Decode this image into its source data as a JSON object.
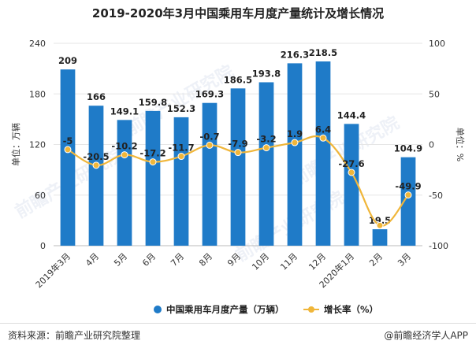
{
  "title": "2019-2020年3月中国乘用车月度产量统计及增长情况",
  "footer": {
    "source": "资料来源：前瞻产业研究院整理",
    "brand": "@前瞻经济学人APP"
  },
  "watermark": "前瞻产业研究院",
  "colors": {
    "bar": "#1f7bc8",
    "line": "#f0b63a",
    "grid": "#e6e6e6",
    "text": "#333333"
  },
  "chart_data": {
    "type": "bar",
    "categories": [
      "2019年3月",
      "4月",
      "5月",
      "6月",
      "7月",
      "8月",
      "9月",
      "10月",
      "11月",
      "12月",
      "2020年1月",
      "2月",
      "3月"
    ],
    "series": [
      {
        "name": "中国乘用车月度产量（万辆）",
        "type": "bar",
        "axis": "left",
        "values": [
          209,
          166,
          149.1,
          159.8,
          152.3,
          169.3,
          186.5,
          193.8,
          216.3,
          218.5,
          144.4,
          19.5,
          104.9
        ],
        "labels": [
          "209",
          "166",
          "149.1",
          "159.8",
          "152.3",
          "169.3",
          "186.5",
          "193.8",
          "216.3",
          "218.5",
          "144.4",
          "19.5",
          "104.9"
        ]
      },
      {
        "name": "增长率（%）",
        "type": "line",
        "axis": "right",
        "values": [
          -5,
          -20.5,
          -10.2,
          -17.2,
          -11.7,
          -0.7,
          -7.9,
          -3.2,
          1.9,
          6.4,
          -27.6,
          -80,
          -49.9
        ],
        "labels": [
          "-5",
          "-20.5",
          "-10.2",
          "-17.2",
          "-11.7",
          "-0.7",
          "-7.9",
          "-3.2",
          "1.9",
          "6.4",
          "-27.6",
          "",
          "-49.9"
        ]
      }
    ],
    "y_left": {
      "label": "单位：万辆",
      "ylim": [
        0,
        240
      ],
      "ticks": [
        "0",
        "60",
        "120",
        "180",
        "240"
      ]
    },
    "y_right": {
      "label": "单位：%",
      "ylim": [
        -100,
        100
      ],
      "ticks": [
        "-100",
        "-50",
        "0",
        "50",
        "100"
      ]
    },
    "legend_position": "bottom",
    "grid": true
  }
}
